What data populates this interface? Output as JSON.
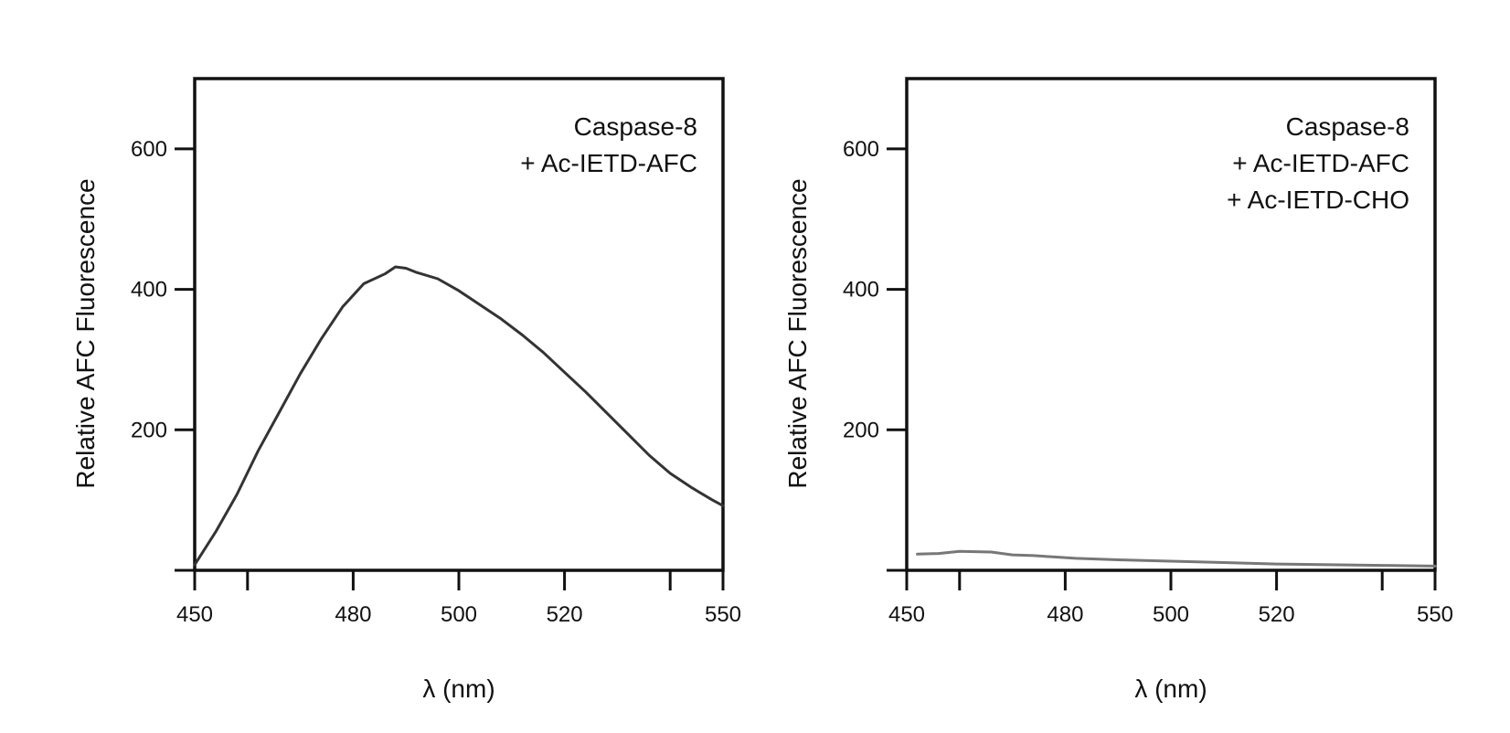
{
  "chart_data": [
    {
      "type": "line",
      "title": "",
      "xlabel": "λ (nm)",
      "ylabel": "Relative AFC Fluorescence",
      "xlim": [
        450,
        550
      ],
      "ylim": [
        0,
        700
      ],
      "x_ticks_labeled": [
        450,
        480,
        500,
        520,
        550
      ],
      "x_ticks_all": [
        450,
        460,
        480,
        500,
        520,
        540,
        550
      ],
      "y_ticks": [
        200,
        400,
        600
      ],
      "grid": false,
      "legend": "none",
      "annotations": [
        "Caspase-8",
        "+ Ac-IETD-AFC"
      ],
      "series": [
        {
          "color": "#333333",
          "x": [
            450,
            454,
            458,
            462,
            466,
            470,
            474,
            478,
            482,
            486,
            488,
            490,
            492,
            496,
            500,
            504,
            508,
            512,
            516,
            520,
            524,
            528,
            532,
            536,
            540,
            544,
            548,
            550
          ],
          "y": [
            8,
            55,
            108,
            170,
            225,
            280,
            330,
            375,
            408,
            422,
            432,
            430,
            424,
            415,
            398,
            378,
            358,
            335,
            310,
            282,
            254,
            224,
            194,
            164,
            138,
            118,
            100,
            92
          ]
        }
      ]
    },
    {
      "type": "line",
      "title": "",
      "xlabel": "λ (nm)",
      "ylabel": "Relative AFC Fluorescence",
      "xlim": [
        450,
        550
      ],
      "ylim": [
        0,
        700
      ],
      "x_ticks_labeled": [
        450,
        480,
        500,
        520,
        550
      ],
      "x_ticks_all": [
        450,
        460,
        480,
        500,
        520,
        540,
        550
      ],
      "y_ticks": [
        200,
        400,
        600
      ],
      "grid": false,
      "legend": "none",
      "annotations": [
        "Caspase-8",
        "+ Ac-IETD-AFC",
        "+ Ac-IETD-CHO"
      ],
      "series": [
        {
          "color": "#777777",
          "x": [
            452,
            456,
            460,
            466,
            470,
            474,
            478,
            482,
            490,
            500,
            510,
            520,
            530,
            540,
            550
          ],
          "y": [
            23,
            24,
            27,
            26,
            22,
            21,
            19,
            17,
            15,
            13,
            11,
            9,
            8,
            7,
            6
          ]
        }
      ]
    }
  ]
}
